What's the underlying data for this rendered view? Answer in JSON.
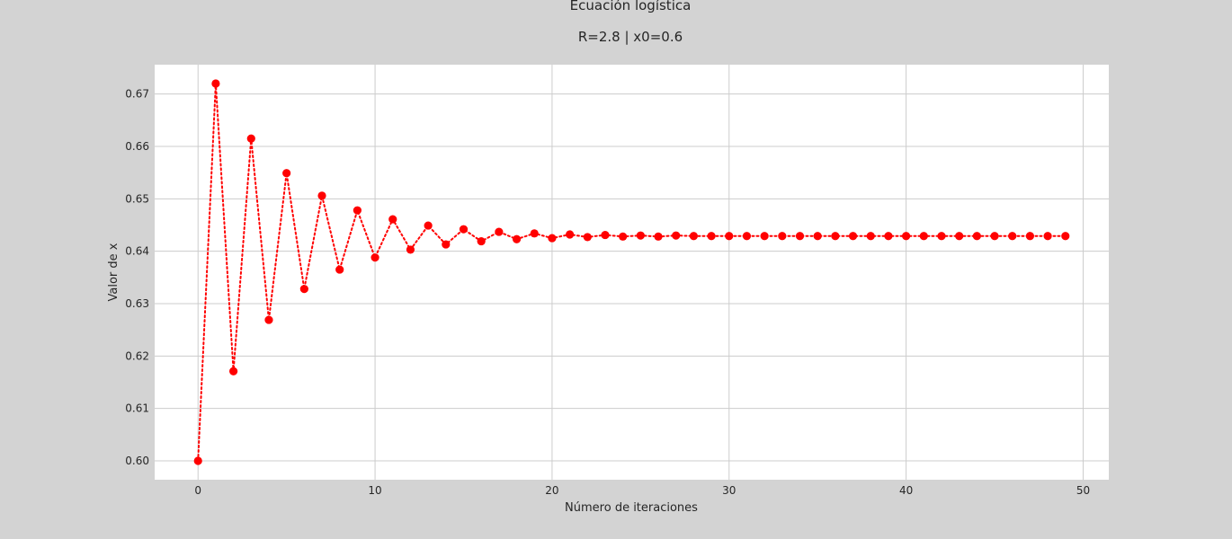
{
  "chart_data": {
    "type": "line",
    "title": "Ecuación logística",
    "subtitle": "R=2.8  |  x0=0.6",
    "xlabel": "Número de iteraciones",
    "ylabel": "Valor de x",
    "xlim": [
      -2.45,
      51.45
    ],
    "ylim": [
      0.5964,
      0.6756
    ],
    "xticks": [
      0,
      10,
      20,
      30,
      40,
      50
    ],
    "yticks": [
      0.6,
      0.61,
      0.62,
      0.63,
      0.64,
      0.65,
      0.66,
      0.67
    ],
    "ytick_labels": [
      "0.60",
      "0.61",
      "0.62",
      "0.63",
      "0.64",
      "0.65",
      "0.66",
      "0.67"
    ],
    "grid": true,
    "line_style": "dotted",
    "marker": "circle",
    "series": [
      {
        "color": "#ff0000",
        "x": [
          0,
          1,
          2,
          3,
          4,
          5,
          6,
          7,
          8,
          9,
          10,
          11,
          12,
          13,
          14,
          15,
          16,
          17,
          18,
          19,
          20,
          21,
          22,
          23,
          24,
          25,
          26,
          27,
          28,
          29,
          30,
          31,
          32,
          33,
          34,
          35,
          36,
          37,
          38,
          39,
          40,
          41,
          42,
          43,
          44,
          45,
          46,
          47,
          48,
          49
        ],
        "values": [
          0.6,
          0.672,
          0.6171,
          0.6615,
          0.6269,
          0.6549,
          0.6328,
          0.6506,
          0.6365,
          0.6478,
          0.6388,
          0.6461,
          0.6403,
          0.6449,
          0.6413,
          0.6442,
          0.6419,
          0.6437,
          0.6423,
          0.6434,
          0.6425,
          0.6432,
          0.6427,
          0.6431,
          0.6428,
          0.643,
          0.6428,
          0.643,
          0.6429,
          0.6429,
          0.6429,
          0.6429,
          0.6429,
          0.6429,
          0.6429,
          0.6429,
          0.6429,
          0.6429,
          0.6429,
          0.6429,
          0.6429,
          0.6429,
          0.6429,
          0.6429,
          0.6429,
          0.6429,
          0.6429,
          0.6429,
          0.6429,
          0.6429
        ]
      }
    ],
    "colors": {
      "figure_background": "#d3d3d3",
      "plot_background": "#ffffff",
      "grid": "#cccccc",
      "text": "#262626"
    }
  }
}
